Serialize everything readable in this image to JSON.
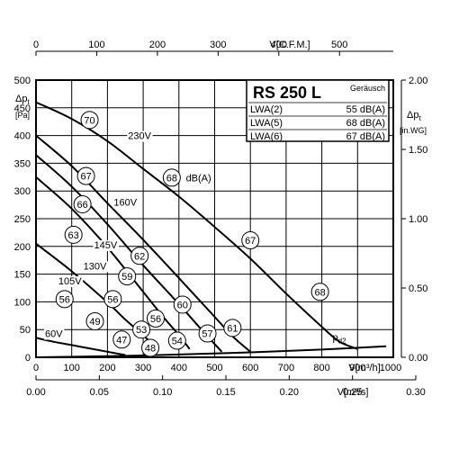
{
  "chart_data": {
    "type": "line",
    "title": "RS 250 L",
    "x_axes": {
      "bottom": {
        "label": "V[m³/h]",
        "ticks": [
          "0",
          "100",
          "200",
          "300",
          "400",
          "500",
          "600",
          "700",
          "800",
          "900",
          "1000"
        ],
        "range": [
          0,
          1000
        ]
      },
      "top": {
        "label": "V[C.F.M.]",
        "ticks": [
          "0",
          "100",
          "200",
          "300",
          "400",
          "500"
        ]
      },
      "bottom2": {
        "label": "V[m³/s]",
        "ticks": [
          "0.00",
          "0.05",
          "0.10",
          "0.15",
          "0.20",
          "0.25",
          "0.30"
        ]
      }
    },
    "y_axes": {
      "left": {
        "label_line1": "Δp",
        "label_sub": "t",
        "label_line2": "[Pa]",
        "ticks": [
          "0",
          "50",
          "100",
          "150",
          "200",
          "250",
          "300",
          "350",
          "400",
          "450",
          "500"
        ],
        "range": [
          0,
          500
        ]
      },
      "right": {
        "label_line1": "Δp",
        "label_sub": "t",
        "label_line2": "[in.WG]",
        "ticks": [
          "0.00",
          "0.50",
          "1.00",
          "1.50",
          "2.00"
        ]
      }
    },
    "grid": true,
    "series": [
      {
        "name": "230V",
        "points": [
          [
            0,
            460
          ],
          [
            100,
            430
          ],
          [
            200,
            390
          ],
          [
            300,
            340
          ],
          [
            400,
            290
          ],
          [
            500,
            235
          ],
          [
            600,
            178
          ],
          [
            700,
            115
          ],
          [
            800,
            55
          ],
          [
            850,
            28
          ],
          [
            900,
            15
          ]
        ]
      },
      {
        "name": "160V",
        "points": [
          [
            0,
            400
          ],
          [
            100,
            345
          ],
          [
            200,
            278
          ],
          [
            300,
            212
          ],
          [
            400,
            143
          ],
          [
            500,
            73
          ],
          [
            550,
            38
          ],
          [
            600,
            10
          ]
        ]
      },
      {
        "name": "145V",
        "points": [
          [
            0,
            365
          ],
          [
            100,
            308
          ],
          [
            200,
            240
          ],
          [
            300,
            166
          ],
          [
            400,
            96
          ],
          [
            470,
            45
          ],
          [
            520,
            10
          ]
        ]
      },
      {
        "name": "130V",
        "points": [
          [
            0,
            325
          ],
          [
            100,
            268
          ],
          [
            200,
            198
          ],
          [
            300,
            118
          ],
          [
            360,
            70
          ],
          [
            400,
            40
          ],
          [
            430,
            15
          ]
        ]
      },
      {
        "name": "105V",
        "points": [
          [
            0,
            205
          ],
          [
            100,
            155
          ],
          [
            200,
            99
          ],
          [
            250,
            68
          ],
          [
            300,
            40
          ],
          [
            330,
            20
          ]
        ]
      },
      {
        "name": "60V",
        "points": [
          [
            0,
            35
          ],
          [
            50,
            28
          ],
          [
            100,
            22
          ],
          [
            150,
            16
          ],
          [
            200,
            10
          ],
          [
            250,
            4
          ]
        ]
      },
      {
        "name": "p_d2",
        "points": [
          [
            0,
            0
          ],
          [
            200,
            2
          ],
          [
            400,
            5
          ],
          [
            600,
            9
          ],
          [
            800,
            14
          ],
          [
            980,
            20
          ]
        ]
      }
    ],
    "curve_labels": [
      {
        "text": "230V",
        "x": 290,
        "y": 400
      },
      {
        "text": "160V",
        "x": 250,
        "y": 280
      },
      {
        "text": "145V",
        "x": 195,
        "y": 203
      },
      {
        "text": "130V",
        "x": 165,
        "y": 165
      },
      {
        "text": "105V",
        "x": 95,
        "y": 138
      },
      {
        "text": "60V",
        "x": 50,
        "y": 43
      },
      {
        "text": "dB(A)",
        "x": 455,
        "y": 324
      }
    ],
    "pd2_label": {
      "text": "p",
      "sub": "d2",
      "x": 830,
      "y": 30
    },
    "db_markers": [
      {
        "value": "70",
        "x": 150,
        "y": 428
      },
      {
        "value": "68",
        "x": 380,
        "y": 324
      },
      {
        "value": "67",
        "x": 600,
        "y": 211
      },
      {
        "value": "68",
        "x": 795,
        "y": 118
      },
      {
        "value": "67",
        "x": 140,
        "y": 327
      },
      {
        "value": "66",
        "x": 130,
        "y": 276
      },
      {
        "value": "63",
        "x": 105,
        "y": 221
      },
      {
        "value": "62",
        "x": 290,
        "y": 183
      },
      {
        "value": "59",
        "x": 255,
        "y": 146
      },
      {
        "value": "60",
        "x": 410,
        "y": 95
      },
      {
        "value": "61",
        "x": 550,
        "y": 53
      },
      {
        "value": "56",
        "x": 80,
        "y": 105
      },
      {
        "value": "56",
        "x": 215,
        "y": 105
      },
      {
        "value": "49",
        "x": 165,
        "y": 65
      },
      {
        "value": "56",
        "x": 335,
        "y": 70
      },
      {
        "value": "53",
        "x": 295,
        "y": 50
      },
      {
        "value": "57",
        "x": 480,
        "y": 43
      },
      {
        "value": "47",
        "x": 240,
        "y": 32
      },
      {
        "value": "54",
        "x": 395,
        "y": 30
      },
      {
        "value": "48",
        "x": 320,
        "y": 17
      }
    ],
    "info_box": {
      "title": "RS 250 L",
      "header": "Geräusch",
      "rows": [
        {
          "label": "LWA(2)",
          "value": "55 dB(A)"
        },
        {
          "label": "LWA(5)",
          "value": "68 dB(A)"
        },
        {
          "label": "LWA(6)",
          "value": "67 dB(A)"
        }
      ]
    }
  }
}
